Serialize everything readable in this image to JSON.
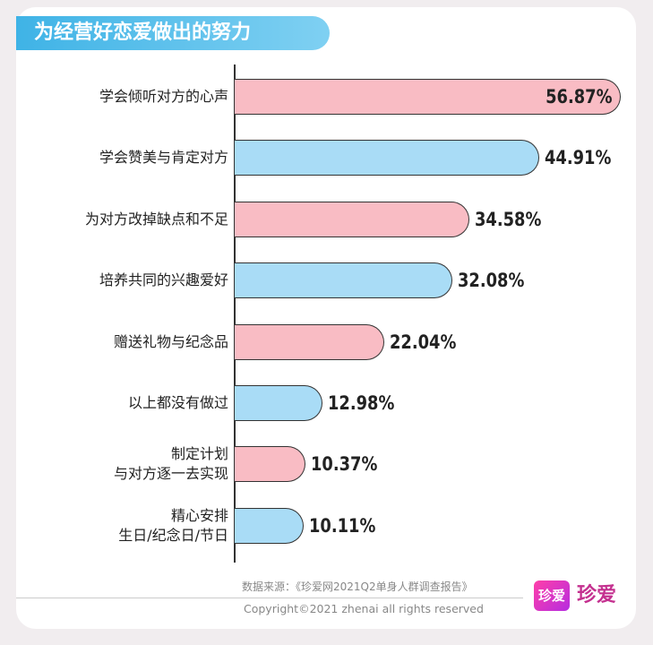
{
  "chart_data": {
    "type": "barh",
    "title": "为经营好恋爱做出的努力",
    "categories": [
      "学会倾听对方的心声",
      "学会赞美与肯定对方",
      "为对方改掉缺点和不足",
      "培养共同的兴趣爱好",
      "赠送礼物与纪念品",
      "以上都没有做过",
      "制定计划\n与对方逐一去实现",
      "精心安排\n生日/纪念日/节日"
    ],
    "values": [
      56.87,
      44.91,
      34.58,
      32.08,
      22.04,
      12.98,
      10.37,
      10.11
    ],
    "value_labels": [
      "56.87%",
      "44.91%",
      "34.58%",
      "32.08%",
      "22.04%",
      "12.98%",
      "10.37%",
      "10.11%"
    ],
    "colors": [
      "#f9bcc4",
      "#a9dcf6",
      "#f9bcc4",
      "#a9dcf6",
      "#f9bcc4",
      "#a9dcf6",
      "#f9bcc4",
      "#a9dcf6"
    ]
  },
  "source": "数据来源：《珍爱网2021Q2单身人群调查报告》",
  "copyright": "Copyright©2021  zhenai  all rights reserved",
  "logo": {
    "badge": "珍爱",
    "text": "珍爱"
  }
}
